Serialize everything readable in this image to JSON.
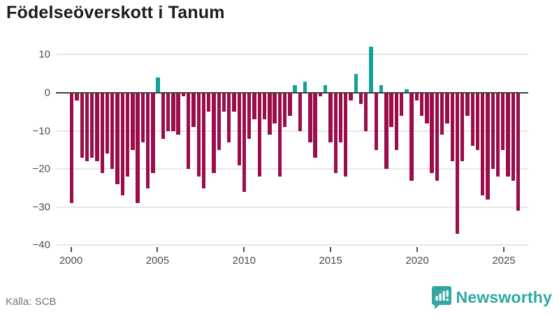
{
  "title": "Födelseöverskott i Tanum",
  "source": {
    "label": "Källa: SCB"
  },
  "branding": {
    "name": "Newsworthy",
    "logo_color": "#35a7a1"
  },
  "chart_data": {
    "type": "bar",
    "title": "Födelseöverskott i Tanum",
    "xlabel": "",
    "ylabel": "",
    "x_range": [
      2000,
      2026
    ],
    "x_ticks": [
      2000,
      2005,
      2010,
      2015,
      2020,
      2025
    ],
    "y_ticks": [
      10,
      0,
      -10,
      -20,
      -30,
      -40
    ],
    "ylim": [
      -42,
      13
    ],
    "grid": true,
    "legend": false,
    "colors": {
      "negative": "#9b0d4b",
      "positive": "#16a099"
    },
    "values": [
      -29,
      -2,
      -17,
      -18,
      -17,
      -18,
      -21,
      -16,
      -20,
      -24,
      -27,
      -22,
      -15,
      -29,
      -13,
      -25,
      -21,
      4,
      -12,
      -10,
      -10,
      -11,
      -1,
      -20,
      -9,
      -22,
      -25,
      -5,
      -21,
      -15,
      -5,
      -13,
      -5,
      -19,
      -26,
      -12,
      -7,
      -22,
      -7,
      -11,
      -8,
      -22,
      -9,
      -6,
      2,
      -10,
      3,
      -13,
      -17,
      -1,
      2,
      -13,
      -21,
      -13,
      -22,
      -2,
      5,
      -3,
      -10,
      12,
      -15,
      2,
      -20,
      -9,
      -15,
      -6,
      1,
      -23,
      -2,
      -6,
      -8,
      -21,
      -23,
      -11,
      -8,
      -18,
      -37,
      -18,
      -6,
      -14,
      -15,
      -27,
      -28,
      -20,
      -22,
      -15,
      -22,
      -23,
      -31
    ]
  }
}
